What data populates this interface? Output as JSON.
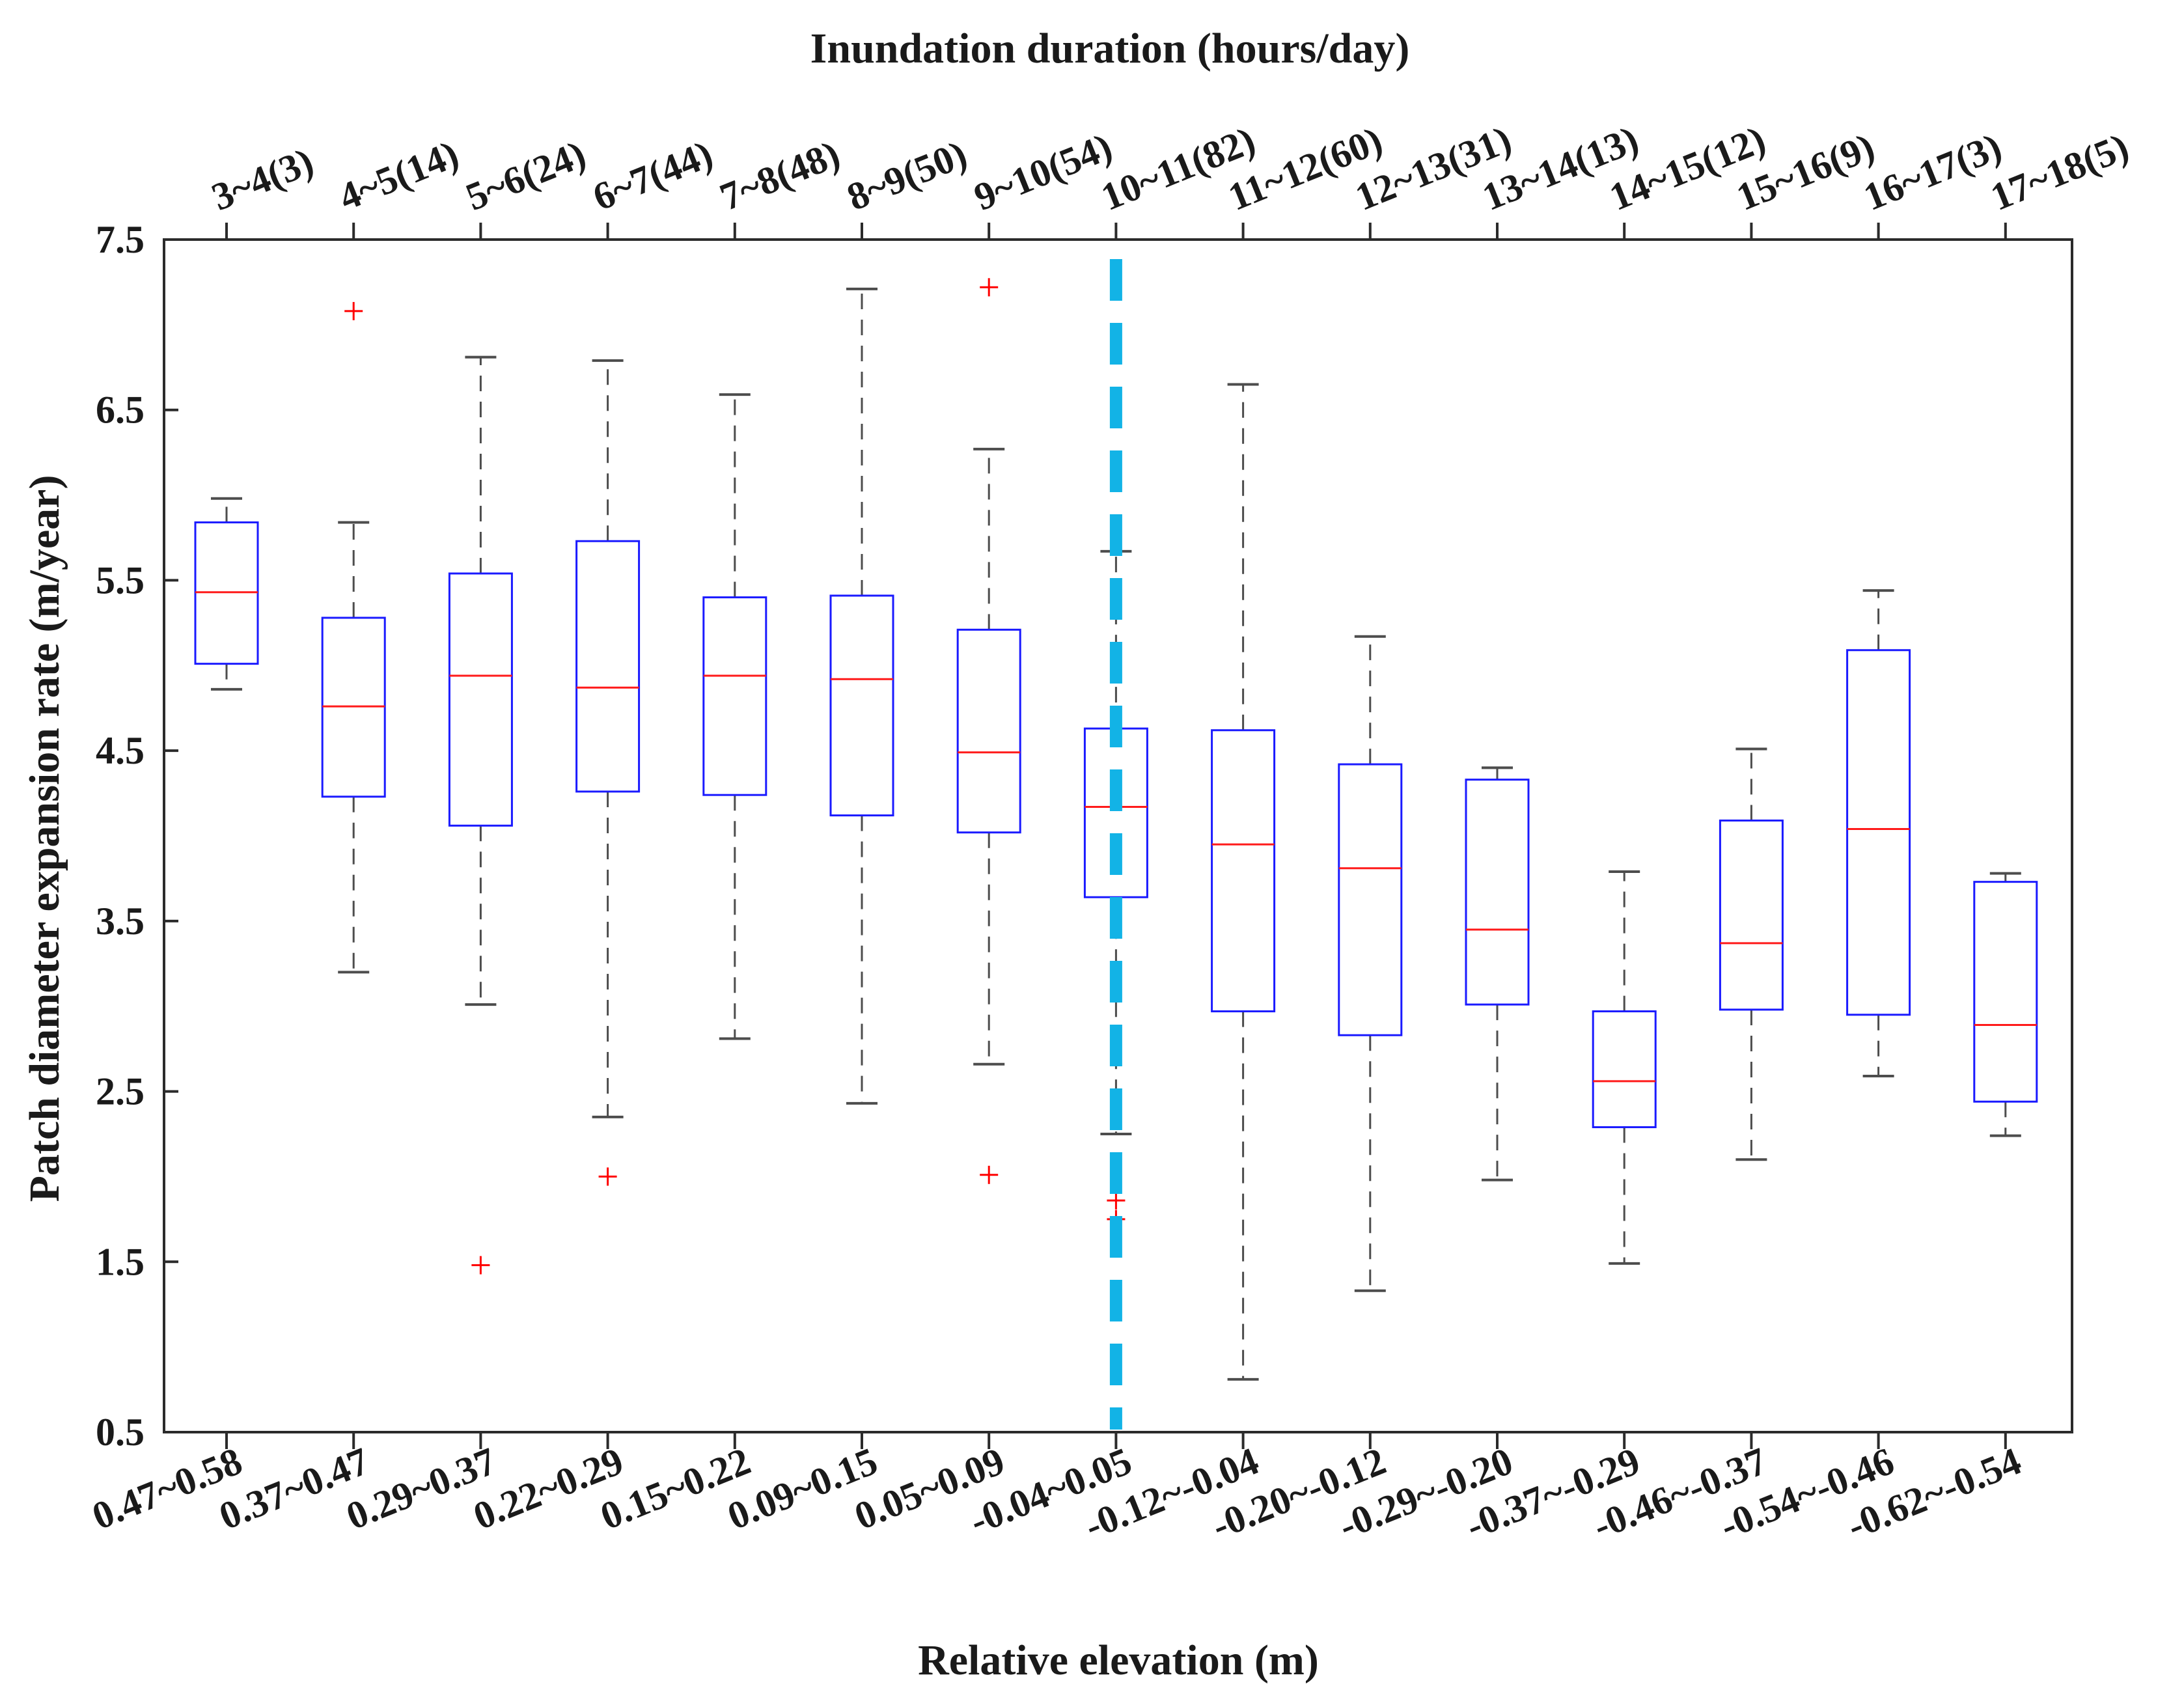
{
  "chart_data": {
    "type": "box",
    "title": "",
    "xlabel": "Relative elevation (m)",
    "x2label": "Inundation duration (hours/day)",
    "ylabel": "Patch diameter expansion rate (m/year)",
    "ylim": [
      0.5,
      7.5
    ],
    "yticks": [
      "0.5",
      "1.5",
      "2.5",
      "3.5",
      "4.5",
      "5.5",
      "6.5",
      "7.5"
    ],
    "categories": [
      "0.47~0.58",
      "0.37~0.47",
      "0.29~0.37",
      "0.22~0.29",
      "0.15~0.22",
      "0.09~0.15",
      "0.05~0.09",
      "-0.04~0.05",
      "-0.12~-0.04",
      "-0.20~-0.12",
      "-0.29~-0.20",
      "-0.37~-0.29",
      "-0.46~-0.37",
      "-0.54~-0.46",
      "-0.62~-0.54"
    ],
    "top_categories": [
      "3~4(3)",
      "4~5(14)",
      "5~6(24)",
      "6~7(44)",
      "7~8(48)",
      "8~9(50)",
      "9~10(54)",
      "10~11(82)",
      "11~12(60)",
      "12~13(31)",
      "13~14(13)",
      "14~15(12)",
      "15~16(9)",
      "16~17(3)",
      "17~18(5)"
    ],
    "boxes": [
      {
        "whisker_low": 4.86,
        "q1": 5.01,
        "median": 5.43,
        "q3": 5.84,
        "whisker_high": 5.98,
        "outliers": []
      },
      {
        "whisker_low": 3.2,
        "q1": 4.23,
        "median": 4.76,
        "q3": 5.28,
        "whisker_high": 5.84,
        "outliers": [
          7.08
        ]
      },
      {
        "whisker_low": 3.01,
        "q1": 4.06,
        "median": 4.94,
        "q3": 5.54,
        "whisker_high": 6.81,
        "outliers": [
          1.48
        ]
      },
      {
        "whisker_low": 2.35,
        "q1": 4.26,
        "median": 4.87,
        "q3": 5.73,
        "whisker_high": 6.79,
        "outliers": [
          2.0
        ]
      },
      {
        "whisker_low": 2.81,
        "q1": 4.24,
        "median": 4.94,
        "q3": 5.4,
        "whisker_high": 6.59,
        "outliers": []
      },
      {
        "whisker_low": 2.43,
        "q1": 4.12,
        "median": 4.92,
        "q3": 5.41,
        "whisker_high": 7.21,
        "outliers": []
      },
      {
        "whisker_low": 2.66,
        "q1": 4.02,
        "median": 4.49,
        "q3": 5.21,
        "whisker_high": 6.27,
        "outliers": [
          7.22,
          2.01
        ]
      },
      {
        "whisker_low": 2.25,
        "q1": 3.64,
        "median": 4.17,
        "q3": 4.63,
        "whisker_high": 5.67,
        "outliers": [
          1.86,
          1.75
        ]
      },
      {
        "whisker_low": 0.81,
        "q1": 2.97,
        "median": 3.95,
        "q3": 4.62,
        "whisker_high": 6.65,
        "outliers": []
      },
      {
        "whisker_low": 1.33,
        "q1": 2.83,
        "median": 3.81,
        "q3": 4.42,
        "whisker_high": 5.17,
        "outliers": []
      },
      {
        "whisker_low": 1.98,
        "q1": 3.01,
        "median": 3.45,
        "q3": 4.33,
        "whisker_high": 4.4,
        "outliers": []
      },
      {
        "whisker_low": 1.49,
        "q1": 2.29,
        "median": 2.56,
        "q3": 2.97,
        "whisker_high": 3.79,
        "outliers": []
      },
      {
        "whisker_low": 2.1,
        "q1": 2.98,
        "median": 3.37,
        "q3": 4.09,
        "whisker_high": 4.51,
        "outliers": []
      },
      {
        "whisker_low": 2.59,
        "q1": 2.95,
        "median": 4.04,
        "q3": 5.09,
        "whisker_high": 5.44,
        "outliers": []
      },
      {
        "whisker_low": 2.24,
        "q1": 2.44,
        "median": 2.89,
        "q3": 3.73,
        "whisker_high": 3.78,
        "outliers": []
      }
    ],
    "reference_line": {
      "category_index": 7,
      "style": "dashed"
    },
    "colors": {
      "box": "#1a1aff",
      "median": "#ff1a1a",
      "whisker": "#4d4d4d",
      "outlier": "#ff0000",
      "reference_line": "#12b3e6"
    }
  }
}
